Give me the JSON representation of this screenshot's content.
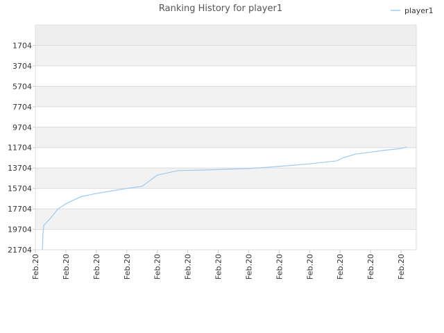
{
  "chart_data": {
    "type": "line",
    "title": "Ranking History for player1",
    "xlabel": "",
    "ylabel": "",
    "y_inverted": true,
    "ylim": [
      21704,
      -296
    ],
    "yticks": [
      1704,
      3704,
      5704,
      7704,
      9704,
      11704,
      13704,
      15704,
      17704,
      19704,
      21704
    ],
    "x_tick_labels": [
      "Feb.20",
      "Feb.20",
      "Feb.20",
      "Feb.20",
      "Feb.20",
      "Feb.20",
      "Feb.20",
      "Feb.20",
      "Feb.20",
      "Feb.20",
      "Feb.20",
      "Feb.20",
      "Feb.20"
    ],
    "xlim": [
      0,
      12.5
    ],
    "legend": {
      "position": "top-right"
    },
    "grid": true,
    "colors": {
      "line": "#9ec9f0",
      "band_dark": "#f2f2f2",
      "band_light": "#ffffff",
      "grid": "#dddddd",
      "axis": "#cccccc"
    },
    "series": [
      {
        "name": "player1",
        "x": [
          0.23,
          0.25,
          0.28,
          0.5,
          0.75,
          1.0,
          1.5,
          2.0,
          3.0,
          3.5,
          4.0,
          4.7,
          5.5,
          7.0,
          8.0,
          9.0,
          9.9,
          10.1,
          10.5,
          11.0,
          11.5,
          12.0,
          12.2
        ],
        "y": [
          21704,
          20000,
          19300,
          18600,
          17700,
          17200,
          16500,
          16200,
          15700,
          15500,
          14400,
          13950,
          13900,
          13750,
          13550,
          13300,
          13000,
          12700,
          12350,
          12150,
          11950,
          11800,
          11650
        ]
      }
    ]
  }
}
